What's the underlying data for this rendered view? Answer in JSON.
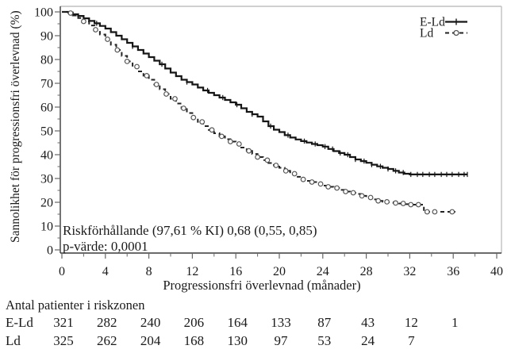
{
  "chart_data": {
    "type": "line",
    "subtype": "kaplan-meier-step",
    "xlabel": "Progressionsfri överlevnad (månader)",
    "ylabel": "Sannolikhet för progressionsfri överlevnad (%)",
    "xlim": [
      0,
      40
    ],
    "ylim": [
      0,
      100
    ],
    "x_major_ticks": [
      0,
      4,
      8,
      12,
      16,
      20,
      24,
      28,
      32,
      36,
      40
    ],
    "x_minor_step": 2,
    "y_major_ticks": [
      0,
      10,
      20,
      30,
      40,
      50,
      60,
      70,
      80,
      90,
      100
    ],
    "y_minor_step": 5,
    "grid": false,
    "legend_position": "top-right",
    "legend": {
      "entries": [
        {
          "label": "E-Ld"
        },
        {
          "label": "Ld"
        }
      ]
    },
    "annotation": {
      "line1": "Riskförhållande (97,61 % KI) 0,68 (0,55, 0,85)",
      "line2": "p-värde: 0,0001"
    },
    "series": [
      {
        "name": "E-Ld",
        "style": "solid",
        "marker": "censor-tick",
        "points": [
          [
            0,
            100
          ],
          [
            0.6,
            99.7
          ],
          [
            1,
            99
          ],
          [
            1.5,
            98.3
          ],
          [
            2,
            97.3
          ],
          [
            2.5,
            96.2
          ],
          [
            3,
            95.2
          ],
          [
            3.5,
            94.1
          ],
          [
            4,
            93
          ],
          [
            4.5,
            91.5
          ],
          [
            5,
            90
          ],
          [
            5.5,
            88.5
          ],
          [
            6,
            87
          ],
          [
            6.5,
            85.5
          ],
          [
            7,
            84
          ],
          [
            7.5,
            82.5
          ],
          [
            8,
            81
          ],
          [
            8.5,
            79.5
          ],
          [
            9,
            78
          ],
          [
            9.5,
            76.2
          ],
          [
            10,
            74.5
          ],
          [
            10.5,
            73
          ],
          [
            11,
            71.5
          ],
          [
            11.5,
            70.5
          ],
          [
            12,
            69.5
          ],
          [
            12.5,
            68.2
          ],
          [
            13,
            67
          ],
          [
            13.5,
            66
          ],
          [
            14,
            65
          ],
          [
            14.5,
            64
          ],
          [
            15,
            63
          ],
          [
            15.5,
            62
          ],
          [
            16,
            61
          ],
          [
            16.5,
            59.5
          ],
          [
            17,
            58
          ],
          [
            17.5,
            57
          ],
          [
            18,
            56
          ],
          [
            18.5,
            54
          ],
          [
            19,
            52
          ],
          [
            19.5,
            50.5
          ],
          [
            20,
            49.5
          ],
          [
            20.5,
            48.2
          ],
          [
            21,
            47.2
          ],
          [
            21.5,
            46.4
          ],
          [
            22,
            45.7
          ],
          [
            22.5,
            45.1
          ],
          [
            23,
            44.5
          ],
          [
            23.5,
            44
          ],
          [
            24,
            43.4
          ],
          [
            24.5,
            42.4
          ],
          [
            25,
            41.5
          ],
          [
            25.5,
            40.7
          ],
          [
            26,
            40
          ],
          [
            26.5,
            39
          ],
          [
            27,
            38
          ],
          [
            27.5,
            37.3
          ],
          [
            28,
            36.6
          ],
          [
            28.5,
            35.8
          ],
          [
            29,
            35.1
          ],
          [
            29.5,
            34.5
          ],
          [
            30,
            34
          ],
          [
            30.5,
            33.2
          ],
          [
            31,
            32.5
          ],
          [
            31.5,
            32
          ],
          [
            32,
            31.7
          ],
          [
            37.3,
            31.7
          ]
        ],
        "censor_months": [
          1.5,
          3.2,
          6.5,
          9.2,
          11.5,
          13.4,
          14.8,
          16.1,
          17.5,
          19.2,
          20.8,
          22.3,
          23.3,
          24.2,
          24.9,
          25.6,
          26.3,
          27,
          27.8,
          28.5,
          29.3,
          30,
          30.7,
          31.4,
          32.1,
          32.7,
          33.2,
          33.8,
          34.3,
          34.9,
          35.4,
          35.9,
          36.5,
          37,
          37.3
        ]
      },
      {
        "name": "Ld",
        "style": "dashed",
        "marker": "open-circle",
        "points": [
          [
            0,
            100
          ],
          [
            0.5,
            99.5
          ],
          [
            1,
            98.5
          ],
          [
            1.5,
            97.4
          ],
          [
            2,
            96
          ],
          [
            2.5,
            94.3
          ],
          [
            3,
            92.5
          ],
          [
            3.5,
            90.5
          ],
          [
            4,
            88.5
          ],
          [
            4.5,
            86.2
          ],
          [
            5,
            84
          ],
          [
            5.5,
            81.5
          ],
          [
            6,
            79.2
          ],
          [
            6.5,
            77
          ],
          [
            7,
            75
          ],
          [
            7.5,
            73.2
          ],
          [
            8,
            71.5
          ],
          [
            8.5,
            69.5
          ],
          [
            9,
            67.5
          ],
          [
            9.5,
            65.5
          ],
          [
            10,
            63.5
          ],
          [
            10.5,
            61.5
          ],
          [
            11,
            59.5
          ],
          [
            11.5,
            57.5
          ],
          [
            12,
            55.6
          ],
          [
            12.5,
            53.8
          ],
          [
            13,
            52
          ],
          [
            13.5,
            50.4
          ],
          [
            14,
            49
          ],
          [
            14.5,
            47.7
          ],
          [
            15,
            46.5
          ],
          [
            15.5,
            45.5
          ],
          [
            16,
            44.5
          ],
          [
            16.5,
            43
          ],
          [
            17,
            41.6
          ],
          [
            17.5,
            40.3
          ],
          [
            18,
            39
          ],
          [
            18.5,
            37.7
          ],
          [
            19,
            36.5
          ],
          [
            19.5,
            35.5
          ],
          [
            20,
            34.5
          ],
          [
            20.5,
            33.2
          ],
          [
            21,
            32
          ],
          [
            21.5,
            30.7
          ],
          [
            22,
            29.6
          ],
          [
            22.5,
            29
          ],
          [
            23,
            28.5
          ],
          [
            23.5,
            27.7
          ],
          [
            24,
            27
          ],
          [
            24.5,
            26.5
          ],
          [
            25,
            26
          ],
          [
            25.5,
            25.2
          ],
          [
            26,
            24.5
          ],
          [
            26.5,
            24
          ],
          [
            27,
            23.5
          ],
          [
            27.5,
            22.7
          ],
          [
            28,
            22
          ],
          [
            28.5,
            21.2
          ],
          [
            29,
            20.6
          ],
          [
            29.5,
            20.2
          ],
          [
            30,
            20
          ],
          [
            30.5,
            19.7
          ],
          [
            31,
            19.5
          ],
          [
            31.5,
            19.2
          ],
          [
            32,
            19
          ],
          [
            33.2,
            19
          ],
          [
            33.3,
            16
          ],
          [
            36.2,
            16
          ]
        ],
        "censor_months": [
          0.8,
          2,
          3.1,
          4.2,
          5.1,
          6,
          6.9,
          7.8,
          8.7,
          9.6,
          10.4,
          11.2,
          12.1,
          12.9,
          13.8,
          14.7,
          15.5,
          16.3,
          17.2,
          18,
          18.9,
          19.7,
          20.6,
          21.4,
          22.2,
          23,
          23.8,
          24.5,
          25.3,
          26.1,
          26.8,
          27.6,
          28.4,
          29.1,
          29.9,
          30.7,
          31.4,
          32.1,
          32.8,
          33.6,
          34.3,
          35.9
        ]
      }
    ]
  },
  "risk_table": {
    "title": "Antal patienter i riskzonen",
    "rows": [
      {
        "label": "E-Ld",
        "months": [
          0,
          4,
          8,
          12,
          16,
          20,
          24,
          28,
          32,
          36
        ],
        "values": [
          "321",
          "282",
          "240",
          "206",
          "164",
          "133",
          "87",
          "43",
          "12",
          "1"
        ]
      },
      {
        "label": "Ld",
        "months": [
          0,
          4,
          8,
          12,
          16,
          20,
          24,
          28,
          32
        ],
        "values": [
          "325",
          "262",
          "204",
          "168",
          "130",
          "97",
          "53",
          "24",
          "7"
        ]
      }
    ]
  },
  "colors": {
    "curve_solid": "#161616",
    "curve_dashed": "#222222",
    "frame_gray": "#c0c0c0",
    "axis": "#3a3a3a",
    "tick": "#666666",
    "censor_circle_stroke": "#555555",
    "text": "#1a1a1a"
  }
}
